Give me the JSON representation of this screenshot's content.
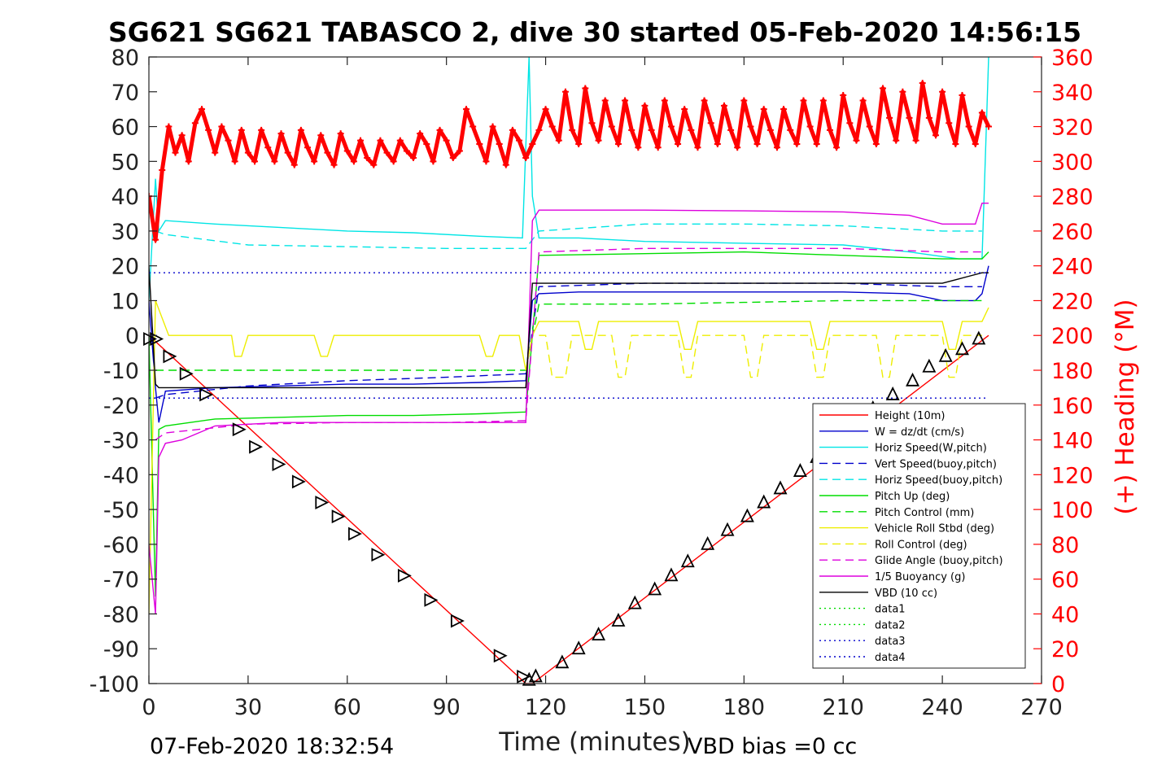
{
  "chart_data": {
    "type": "line",
    "title": "SG621 SG621 TABASCO 2, dive 30 started 05-Feb-2020 14:56:15",
    "xlabel": "Time (minutes)",
    "ylabel": "",
    "y2label": "(+) Heading (°M)",
    "xlim": [
      0,
      270
    ],
    "ylim": [
      -100,
      80
    ],
    "y2lim": [
      0,
      360
    ],
    "xticks": [
      "0",
      "30",
      "60",
      "90",
      "120",
      "150",
      "180",
      "210",
      "240",
      "270"
    ],
    "yticks": [
      "80",
      "70",
      "60",
      "50",
      "40",
      "30",
      "20",
      "10",
      "0",
      "-10",
      "-20",
      "-30",
      "-40",
      "-50",
      "-60",
      "-70",
      "-80",
      "-90",
      "-100"
    ],
    "y2ticks": [
      "360",
      "340",
      "320",
      "300",
      "280",
      "260",
      "240",
      "220",
      "200",
      "180",
      "160",
      "140",
      "120",
      "100",
      "80",
      "60",
      "40",
      "20",
      "0"
    ],
    "grid": false,
    "legend_position": "bottom-right",
    "footer_left": "07-Feb-2020 18:32:54",
    "footer_right": "VBD bias =0 cc",
    "series": [
      {
        "name": "Height (10m)",
        "color": "#ff0000",
        "dash": "solid",
        "x": [
          0,
          114,
          116,
          254
        ],
        "y": [
          0,
          -100,
          -100,
          0
        ]
      },
      {
        "name": "W = dz/dt (cm/s)",
        "color": "#0000cc",
        "dash": "solid",
        "x": [
          0,
          2,
          3,
          5,
          20,
          40,
          60,
          80,
          100,
          114,
          116,
          118,
          130,
          150,
          180,
          210,
          230,
          240,
          250,
          252,
          254
        ],
        "y": [
          10,
          -15,
          -25,
          -16,
          -15,
          -14.5,
          -14,
          -14,
          -13.5,
          -13,
          10,
          12,
          12.5,
          12.5,
          12.5,
          12.5,
          12,
          10,
          10,
          12,
          20
        ]
      },
      {
        "name": "Horiz Speed(W,pitch)",
        "color": "#00e5e5",
        "dash": "solid",
        "x": [
          0,
          2,
          3,
          5,
          20,
          40,
          60,
          80,
          100,
          113,
          115,
          116,
          118,
          130,
          150,
          180,
          210,
          230,
          245,
          252,
          254
        ],
        "y": [
          10,
          45,
          30,
          33,
          32,
          31,
          30,
          29.5,
          28.5,
          28,
          80,
          40,
          28,
          28,
          27,
          26.5,
          26,
          24,
          22,
          22,
          80
        ]
      },
      {
        "name": "Vert Speed(buoy,pitch)",
        "color": "#0000cc",
        "dash": "dash",
        "x": [
          2,
          5,
          30,
          60,
          90,
          114,
          118,
          150,
          180,
          210,
          240,
          252
        ],
        "y": [
          -18,
          -17,
          -14.5,
          -13,
          -12,
          -11,
          14,
          15,
          15,
          15,
          14,
          14
        ]
      },
      {
        "name": "Horiz Speed(buoy,pitch)",
        "color": "#00e5e5",
        "dash": "dash",
        "x": [
          2,
          5,
          30,
          60,
          90,
          114,
          118,
          150,
          180,
          210,
          240,
          252
        ],
        "y": [
          30,
          29,
          26,
          25.5,
          25,
          25,
          30,
          32,
          32,
          31.5,
          30,
          30
        ]
      },
      {
        "name": "Pitch Up (deg)",
        "color": "#00dd00",
        "dash": "solid",
        "x": [
          0,
          2,
          3,
          5,
          20,
          40,
          60,
          80,
          100,
          114,
          116,
          118,
          150,
          180,
          210,
          240,
          252,
          254
        ],
        "y": [
          0,
          -75,
          -27,
          -26,
          -24,
          -23.5,
          -23,
          -23,
          -22.5,
          -22,
          0,
          23,
          23.5,
          24,
          23,
          22,
          22,
          24
        ]
      },
      {
        "name": "Pitch Control (mm)",
        "color": "#00dd00",
        "dash": "dash",
        "x": [
          2,
          5,
          30,
          60,
          90,
          114,
          118,
          150,
          180,
          210,
          240,
          252
        ],
        "y": [
          -10,
          -10,
          -10,
          -10,
          -10,
          -10,
          9,
          9,
          9.5,
          10,
          10,
          10
        ]
      },
      {
        "name": "Vehicle Roll Stbd (deg)",
        "color": "#eeee00",
        "dash": "solid",
        "x": [
          0,
          2,
          6,
          25,
          26,
          28,
          30,
          50,
          52,
          54,
          56,
          100,
          102,
          104,
          106,
          112,
          114,
          116,
          118,
          130,
          132,
          134,
          136,
          160,
          162,
          164,
          166,
          200,
          202,
          204,
          206,
          240,
          242,
          244,
          246,
          252,
          254
        ],
        "y": [
          -80,
          10,
          0,
          0,
          -6,
          -6,
          0,
          0,
          -6,
          -6,
          0,
          0,
          -6,
          -6,
          0,
          0,
          -10,
          0,
          4,
          4,
          -4,
          -4,
          4,
          4,
          -4,
          -4,
          4,
          4,
          -4,
          -4,
          4,
          4,
          -4,
          -4,
          4,
          4,
          8
        ]
      },
      {
        "name": "Roll Control (deg)",
        "color": "#eeee00",
        "dash": "dash",
        "x": [
          118,
          120,
          122,
          126,
          128,
          130,
          140,
          142,
          144,
          146,
          160,
          162,
          164,
          166,
          180,
          182,
          184,
          186,
          200,
          202,
          204,
          206,
          220,
          222,
          224,
          226,
          240,
          242,
          244,
          246,
          252
        ],
        "y": [
          0,
          0,
          -12,
          -12,
          0,
          0,
          0,
          -12,
          -12,
          0,
          0,
          -12,
          -12,
          0,
          0,
          -12,
          -12,
          0,
          0,
          -12,
          -12,
          0,
          0,
          -12,
          -12,
          0,
          0,
          -12,
          -12,
          0,
          0
        ]
      },
      {
        "name": "Glide Angle (buoy,pitch)",
        "color": "#dd00dd",
        "dash": "dash",
        "x": [
          2,
          5,
          30,
          60,
          90,
          114,
          118,
          150,
          180,
          210,
          240,
          252
        ],
        "y": [
          -30,
          -28,
          -25.5,
          -25,
          -25,
          -24.5,
          24,
          25,
          25,
          25,
          24,
          24
        ]
      },
      {
        "name": "1/5 Buoyancy (g)",
        "color": "#dd00dd",
        "dash": "solid",
        "x": [
          0,
          2,
          3,
          5,
          10,
          20,
          40,
          60,
          80,
          100,
          114,
          116,
          118,
          150,
          180,
          210,
          230,
          240,
          250,
          252,
          254
        ],
        "y": [
          -60,
          -80,
          -35,
          -31,
          -30,
          -26,
          -25,
          -25,
          -25,
          -25,
          -25,
          33,
          36,
          36,
          35.8,
          35.5,
          34.5,
          32,
          32,
          38,
          38
        ]
      },
      {
        "name": "VBD (10 cc)",
        "color": "#000000",
        "dash": "solid",
        "x": [
          0,
          2,
          3,
          5,
          114,
          116,
          118,
          150,
          180,
          210,
          240,
          244,
          248,
          252,
          254
        ],
        "y": [
          20,
          -14,
          -15,
          -15,
          -15,
          15,
          15,
          15,
          15,
          15,
          15,
          16,
          17,
          18,
          18
        ]
      },
      {
        "name": "data1",
        "color": "#00dd00",
        "dash": "dot",
        "x": [],
        "y": []
      },
      {
        "name": "data2",
        "color": "#00dd00",
        "dash": "dot",
        "x": [],
        "y": []
      },
      {
        "name": "data3",
        "color": "#0000cc",
        "dash": "dot",
        "x": [
          0,
          254
        ],
        "y": [
          18,
          18
        ]
      },
      {
        "name": "data4",
        "color": "#0000cc",
        "dash": "dot",
        "x": [
          0,
          254
        ],
        "y": [
          -18,
          -18
        ]
      }
    ],
    "heading": {
      "color": "#ff0000",
      "axis": "right",
      "x": [
        0,
        2,
        4,
        6,
        8,
        10,
        12,
        14,
        16,
        18,
        20,
        22,
        24,
        26,
        28,
        30,
        32,
        34,
        36,
        38,
        40,
        42,
        44,
        46,
        48,
        50,
        52,
        54,
        56,
        58,
        60,
        62,
        64,
        66,
        68,
        70,
        72,
        74,
        76,
        78,
        80,
        82,
        84,
        86,
        88,
        90,
        92,
        94,
        96,
        98,
        100,
        102,
        104,
        106,
        108,
        110,
        112,
        114,
        116,
        118,
        120,
        122,
        124,
        126,
        128,
        130,
        132,
        134,
        136,
        138,
        140,
        142,
        144,
        146,
        148,
        150,
        152,
        154,
        156,
        158,
        160,
        162,
        164,
        166,
        168,
        170,
        172,
        174,
        176,
        178,
        180,
        182,
        184,
        186,
        188,
        190,
        192,
        194,
        196,
        198,
        200,
        202,
        204,
        206,
        208,
        210,
        212,
        214,
        216,
        218,
        220,
        222,
        224,
        226,
        228,
        230,
        232,
        234,
        236,
        238,
        240,
        242,
        244,
        246,
        248,
        250,
        252,
        254
      ],
      "y": [
        280,
        255,
        295,
        320,
        305,
        315,
        300,
        322,
        330,
        318,
        305,
        320,
        312,
        300,
        318,
        305,
        300,
        318,
        308,
        300,
        316,
        305,
        298,
        318,
        308,
        300,
        315,
        305,
        298,
        316,
        306,
        300,
        312,
        302,
        298,
        312,
        305,
        300,
        312,
        306,
        302,
        316,
        310,
        300,
        318,
        312,
        302,
        306,
        330,
        320,
        310,
        300,
        320,
        310,
        298,
        318,
        312,
        302,
        310,
        318,
        330,
        320,
        312,
        340,
        318,
        310,
        342,
        322,
        312,
        335,
        320,
        310,
        335,
        318,
        308,
        332,
        318,
        308,
        335,
        320,
        310,
        330,
        318,
        308,
        335,
        322,
        310,
        332,
        318,
        308,
        335,
        320,
        310,
        330,
        318,
        308,
        330,
        318,
        310,
        335,
        320,
        310,
        335,
        318,
        308,
        338,
        322,
        312,
        335,
        320,
        310,
        342,
        325,
        312,
        340,
        325,
        312,
        345,
        325,
        315,
        340,
        322,
        310,
        338,
        320,
        310,
        328,
        320
      ]
    },
    "depth_markers": {
      "color": "#000000",
      "x": [
        0,
        2,
        6,
        11,
        17,
        27,
        32,
        39,
        45,
        52,
        57,
        62,
        69,
        77,
        85,
        93,
        106,
        113,
        115,
        117,
        125,
        130,
        136,
        142,
        147,
        153,
        158,
        163,
        169,
        175,
        181,
        186,
        191,
        197,
        202,
        208,
        213,
        219,
        225,
        231,
        236,
        241,
        246,
        251
      ],
      "y": [
        -1,
        -1,
        -6,
        -11,
        -17,
        -27,
        -32,
        -37,
        -42,
        -48,
        -52,
        -57,
        -63,
        -69,
        -76,
        -82,
        -92,
        -98,
        -99,
        -98,
        -94,
        -90,
        -86,
        -82,
        -77,
        -73,
        -69,
        -65,
        -60,
        -56,
        -52,
        -48,
        -44,
        -39,
        -35,
        -31,
        -26,
        -21,
        -17,
        -13,
        -9,
        -6,
        -4,
        -1
      ]
    }
  }
}
